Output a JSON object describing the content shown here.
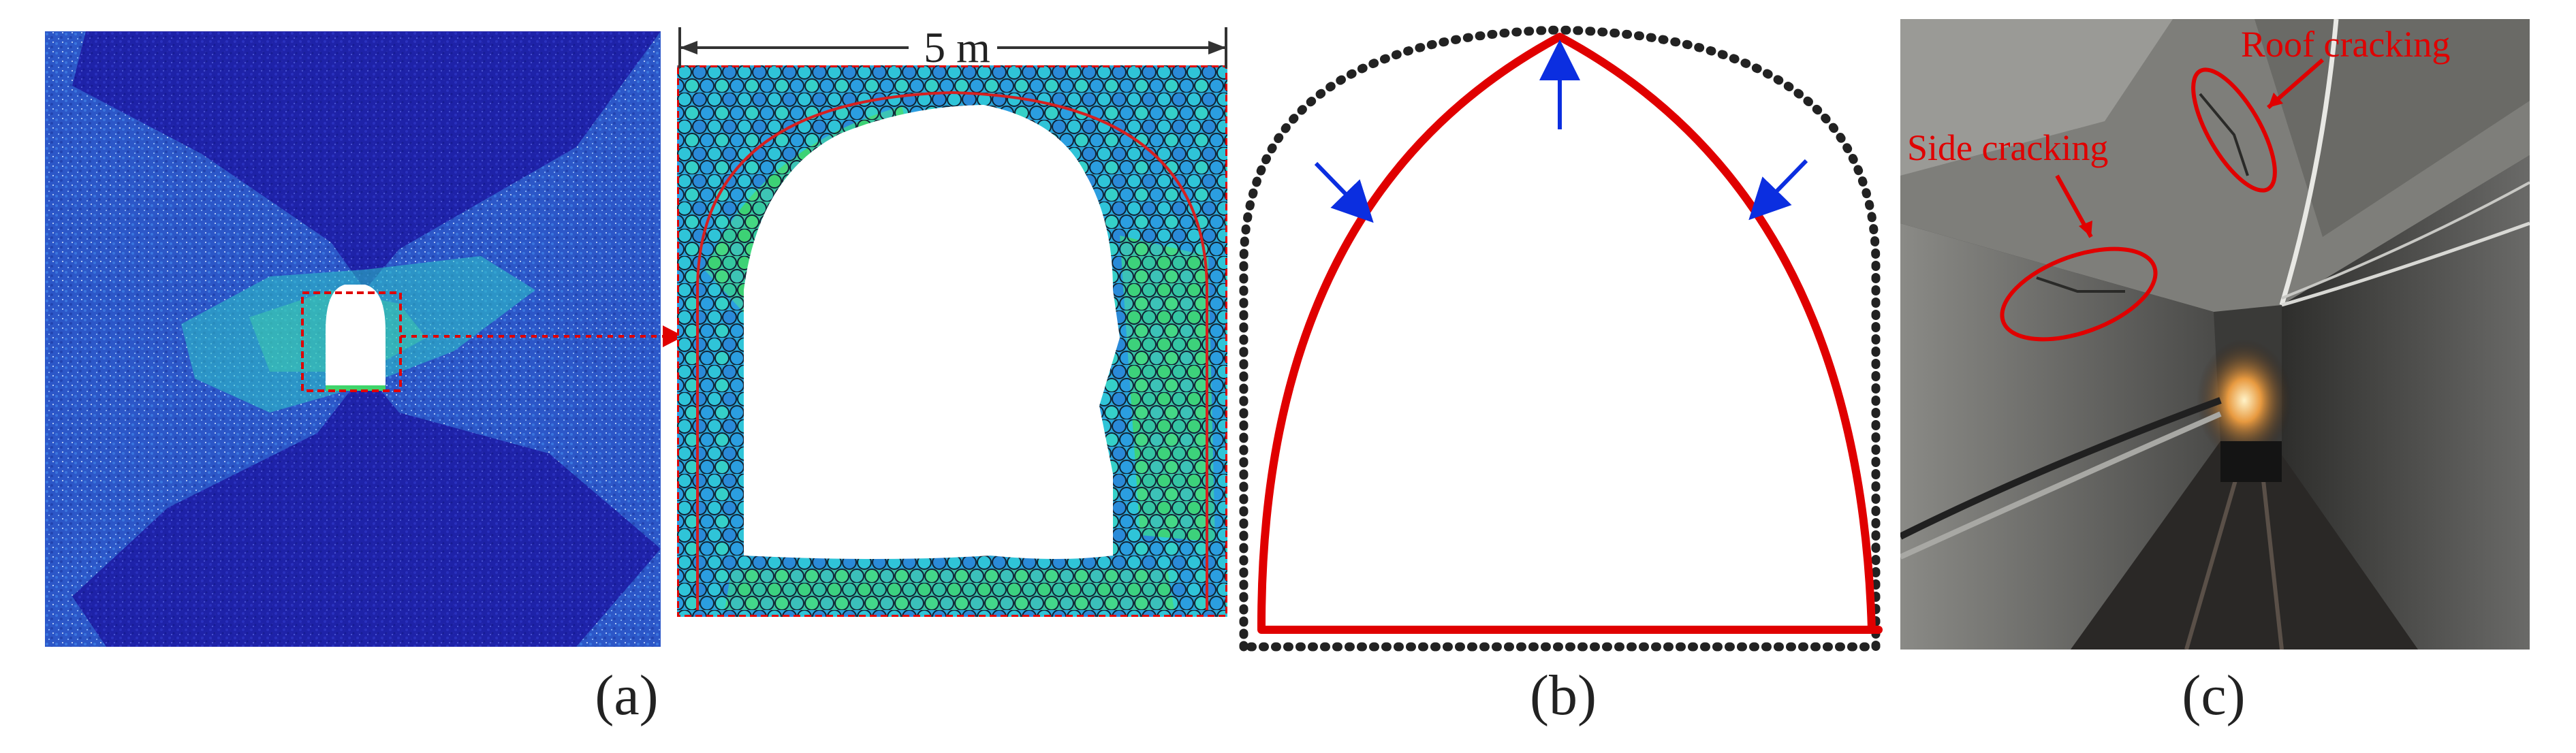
{
  "panel_a": {
    "caption": "(a)",
    "scale_label": "5 m"
  },
  "panel_b": {
    "caption": "(b)"
  },
  "panel_c": {
    "caption": "(c)",
    "roof_label": "Roof cracking",
    "side_label": "Side cracking"
  },
  "colors": {
    "outline_red": "#e00000",
    "arrow_blue": "#0b2ee0",
    "particle_dark": "#1a1aa0",
    "particle_mid": "#2f74d8",
    "particle_cyan": "#28c8d6",
    "particle_green": "#3fd46a"
  }
}
